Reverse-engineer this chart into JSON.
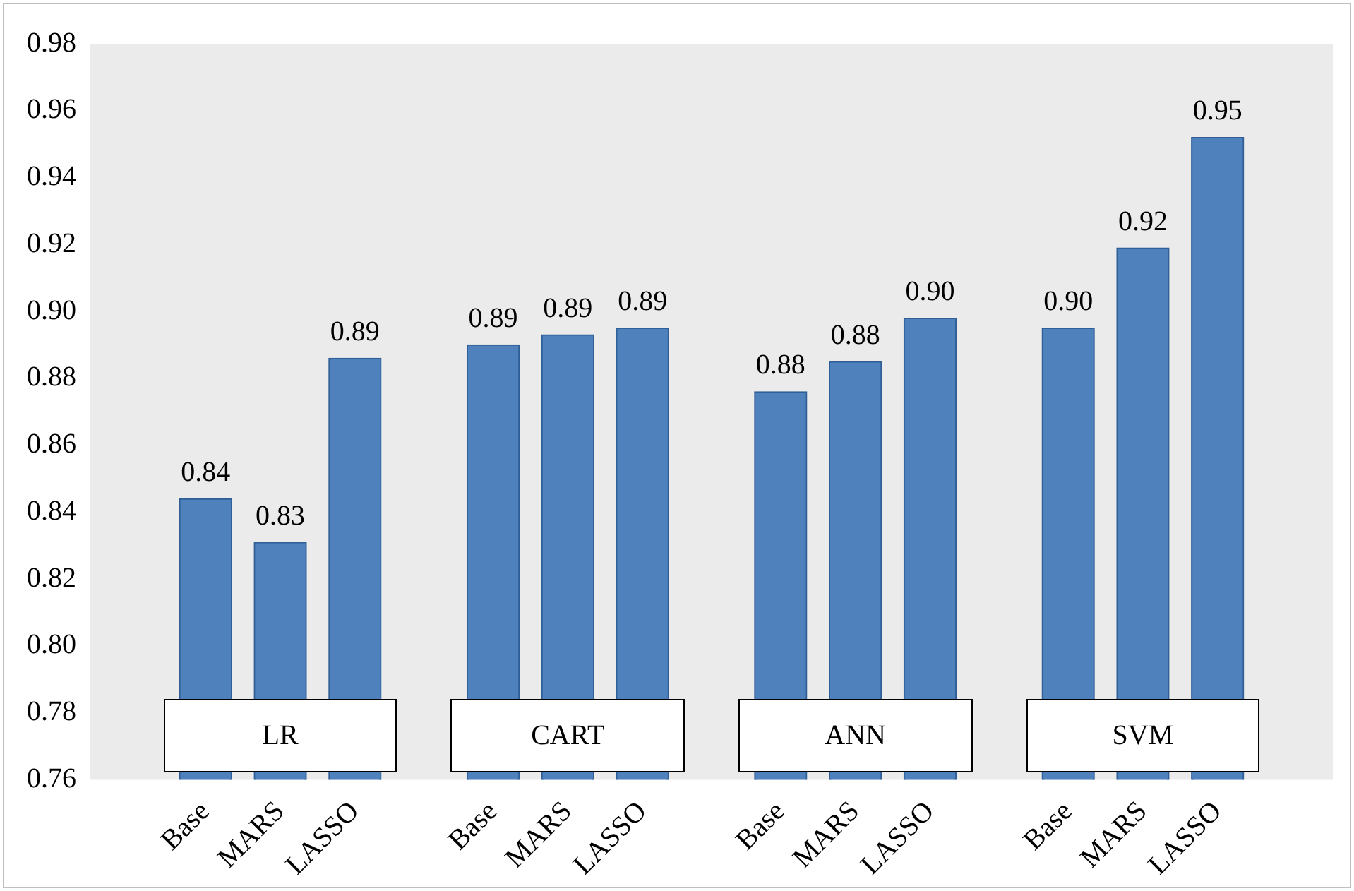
{
  "chart_data": {
    "type": "bar",
    "categories": [
      "Base",
      "MARS",
      "LASSO",
      "Base",
      "MARS",
      "LASSO",
      "Base",
      "MARS",
      "LASSO",
      "Base",
      "MARS",
      "LASSO"
    ],
    "values": [
      0.844,
      0.831,
      0.886,
      0.89,
      0.893,
      0.895,
      0.876,
      0.885,
      0.898,
      0.895,
      0.919,
      0.952
    ],
    "value_labels": [
      "0.84",
      "0.83",
      "0.89",
      "0.89",
      "0.89",
      "0.89",
      "0.88",
      "0.88",
      "0.90",
      "0.90",
      "0.92",
      "0.95"
    ],
    "color": "#4f81bd",
    "ylim": [
      0.76,
      0.98
    ],
    "yticks": [
      {
        "value": 0.76,
        "label": "0.76"
      },
      {
        "value": 0.78,
        "label": "0.78"
      },
      {
        "value": 0.8,
        "label": "0.80"
      },
      {
        "value": 0.82,
        "label": "0.82"
      },
      {
        "value": 0.84,
        "label": "0.84"
      },
      {
        "value": 0.86,
        "label": "0.86"
      },
      {
        "value": 0.88,
        "label": "0.88"
      },
      {
        "value": 0.9,
        "label": "0.90"
      },
      {
        "value": 0.92,
        "label": "0.92"
      },
      {
        "value": 0.94,
        "label": "0.94"
      },
      {
        "value": 0.96,
        "label": "0.96"
      },
      {
        "value": 0.98,
        "label": "0.98"
      }
    ],
    "annotations": [
      "LR",
      "CART",
      "ANN",
      "SVM"
    ],
    "grid": false,
    "legend": false
  }
}
